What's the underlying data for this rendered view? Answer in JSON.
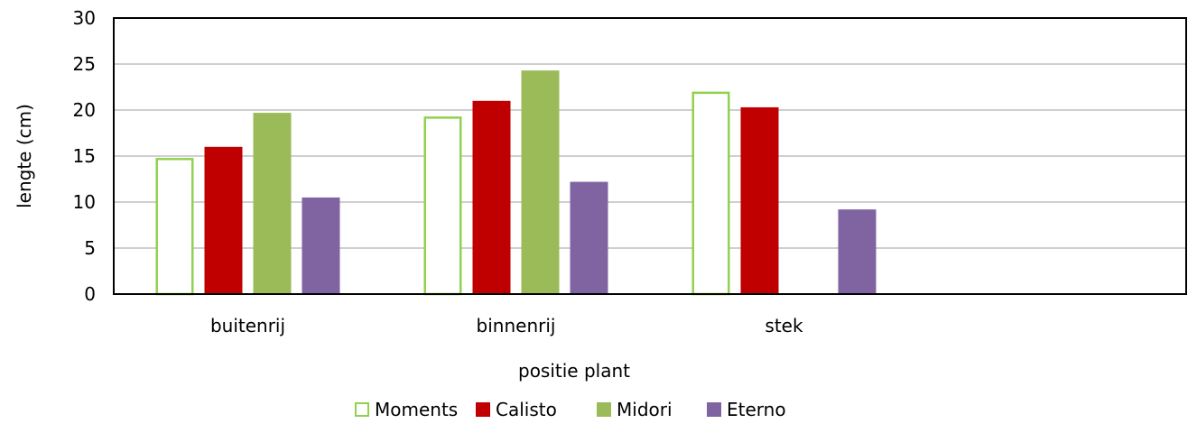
{
  "chart_data": {
    "type": "bar",
    "categories": [
      "buitenrij",
      "binnenrij",
      "stek",
      ""
    ],
    "series": [
      {
        "name": "Moments",
        "values": [
          14.8,
          19.3,
          22.0,
          null
        ],
        "color": "#92D050",
        "style": "outline"
      },
      {
        "name": "Calisto",
        "values": [
          16.0,
          21.0,
          20.3,
          null
        ],
        "color": "#C00000",
        "style": "filled"
      },
      {
        "name": "Midori",
        "values": [
          19.7,
          24.3,
          null,
          null
        ],
        "color": "#9BBB59",
        "style": "filled"
      },
      {
        "name": "Eterno",
        "values": [
          10.5,
          12.2,
          9.2,
          null
        ],
        "color": "#8064A2",
        "style": "filled"
      }
    ],
    "xlabel": "positie plant",
    "ylabel": "lengte (cm)",
    "ylim": [
      0,
      30
    ],
    "yticks": [
      0,
      5,
      10,
      15,
      20,
      25,
      30
    ],
    "grid": true,
    "legend_position": "bottom"
  }
}
